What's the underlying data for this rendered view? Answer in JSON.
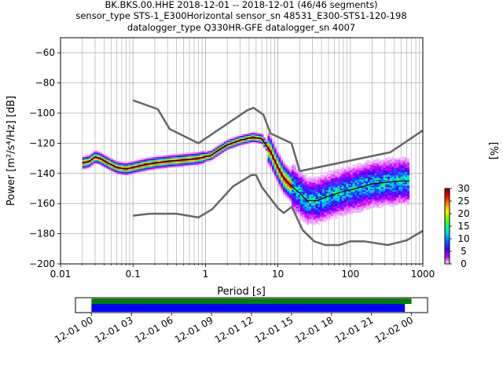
{
  "chart_data": {
    "type": "heatmap",
    "title_lines": [
      "BK.BKS.00.HHE   2018-12-01 -- 2018-12-01  (46/46 segments)",
      "sensor_type STS-1_E300Horizontal sensor_sn 48531_E300-STS1-120-198",
      "datalogger_type Q330HR-GFE datalogger_sn 4007"
    ],
    "xlabel": "Period [s]",
    "ylabel": "Power [m²/s⁴/Hz] [dB]",
    "xscale": "log",
    "xlim": [
      0.01,
      1000
    ],
    "ylim": [
      -200,
      -50
    ],
    "x_ticks": [
      {
        "v": 0.01,
        "label": "0.01"
      },
      {
        "v": 0.1,
        "label": "0.1"
      },
      {
        "v": 1,
        "label": "1"
      },
      {
        "v": 10,
        "label": "10"
      },
      {
        "v": 100,
        "label": "100"
      },
      {
        "v": 1000,
        "label": "1000"
      }
    ],
    "y_ticks": [
      -200,
      -180,
      -160,
      -140,
      -120,
      -100,
      -80,
      -60
    ],
    "grid": true,
    "colorbar": {
      "label": "[%]",
      "min": 0,
      "max": 30,
      "ticks": [
        0,
        5,
        10,
        15,
        20,
        25,
        30
      ],
      "colors": [
        "#ffffff",
        "#cc00ff",
        "#4400ff",
        "#0066ff",
        "#00ccff",
        "#00ff88",
        "#66ff00",
        "#ffee00",
        "#ff8800",
        "#ff0000",
        "#800000"
      ]
    },
    "noise_model_high": [
      {
        "x": 0.1,
        "y": -91.5
      },
      {
        "x": 0.22,
        "y": -97.4
      },
      {
        "x": 0.32,
        "y": -110.5
      },
      {
        "x": 0.8,
        "y": -120.0
      },
      {
        "x": 3.8,
        "y": -98.0
      },
      {
        "x": 4.6,
        "y": -96.5
      },
      {
        "x": 6.3,
        "y": -101.0
      },
      {
        "x": 7.9,
        "y": -113.5
      },
      {
        "x": 15.4,
        "y": -120.0
      },
      {
        "x": 20.0,
        "y": -138.5
      },
      {
        "x": 354.8,
        "y": -126.0
      },
      {
        "x": 1000,
        "y": -111.5
      }
    ],
    "noise_model_low": [
      {
        "x": 0.1,
        "y": -168.0
      },
      {
        "x": 0.17,
        "y": -166.7
      },
      {
        "x": 0.4,
        "y": -166.7
      },
      {
        "x": 0.8,
        "y": -169.2
      },
      {
        "x": 1.24,
        "y": -163.7
      },
      {
        "x": 2.4,
        "y": -148.6
      },
      {
        "x": 4.3,
        "y": -141.1
      },
      {
        "x": 5.0,
        "y": -141.1
      },
      {
        "x": 6.0,
        "y": -149.0
      },
      {
        "x": 10.0,
        "y": -163.0
      },
      {
        "x": 12.0,
        "y": -166.2
      },
      {
        "x": 15.6,
        "y": -162.1
      },
      {
        "x": 21.9,
        "y": -177.5
      },
      {
        "x": 31.6,
        "y": -185.0
      },
      {
        "x": 45.0,
        "y": -187.5
      },
      {
        "x": 70.0,
        "y": -187.5
      },
      {
        "x": 101.0,
        "y": -185.0
      },
      {
        "x": 154.0,
        "y": -185.0
      },
      {
        "x": 328.0,
        "y": -187.5
      },
      {
        "x": 600.0,
        "y": -184.4
      },
      {
        "x": 1000,
        "y": -178.0
      }
    ],
    "mode_curve": [
      {
        "x": 0.02,
        "y": -133
      },
      {
        "x": 0.025,
        "y": -132
      },
      {
        "x": 0.03,
        "y": -129
      },
      {
        "x": 0.035,
        "y": -130
      },
      {
        "x": 0.045,
        "y": -133
      },
      {
        "x": 0.06,
        "y": -136
      },
      {
        "x": 0.08,
        "y": -137
      },
      {
        "x": 0.1,
        "y": -136
      },
      {
        "x": 0.15,
        "y": -134
      },
      {
        "x": 0.2,
        "y": -133
      },
      {
        "x": 0.3,
        "y": -132
      },
      {
        "x": 0.5,
        "y": -131
      },
      {
        "x": 0.8,
        "y": -130
      },
      {
        "x": 1.2,
        "y": -128
      },
      {
        "x": 1.6,
        "y": -124
      },
      {
        "x": 2.0,
        "y": -121
      },
      {
        "x": 3.0,
        "y": -118
      },
      {
        "x": 4.5,
        "y": -116
      },
      {
        "x": 6.0,
        "y": -117
      },
      {
        "x": 8.0,
        "y": -126
      },
      {
        "x": 10.0,
        "y": -136
      },
      {
        "x": 12.0,
        "y": -143
      },
      {
        "x": 15.0,
        "y": -148
      },
      {
        "x": 20.0,
        "y": -153
      },
      {
        "x": 25.0,
        "y": -158
      },
      {
        "x": 35.0,
        "y": -158
      },
      {
        "x": 50.0,
        "y": -155
      },
      {
        "x": 80.0,
        "y": -152
      },
      {
        "x": 120.0,
        "y": -150
      },
      {
        "x": 200.0,
        "y": -147
      },
      {
        "x": 300.0,
        "y": -146
      },
      {
        "x": 500.0,
        "y": -145
      },
      {
        "x": 650.0,
        "y": -145
      }
    ],
    "coverage_axis": {
      "tick_labels": [
        "12-01 00",
        "12-01 03",
        "12-01 06",
        "12-01 09",
        "12-01 12",
        "12-01 15",
        "12-01 18",
        "12-01 21",
        "12-02 00"
      ],
      "tick_hours": [
        0,
        3,
        6,
        9,
        12,
        15,
        18,
        21,
        24
      ],
      "xlim_hours": [
        -1.2,
        25.2
      ],
      "bars": [
        {
          "color": "#008000",
          "start_hour": 0.0,
          "end_hour": 24.0
        },
        {
          "color": "#0000ff",
          "start_hour": 0.0,
          "end_hour": 23.5
        }
      ]
    }
  }
}
